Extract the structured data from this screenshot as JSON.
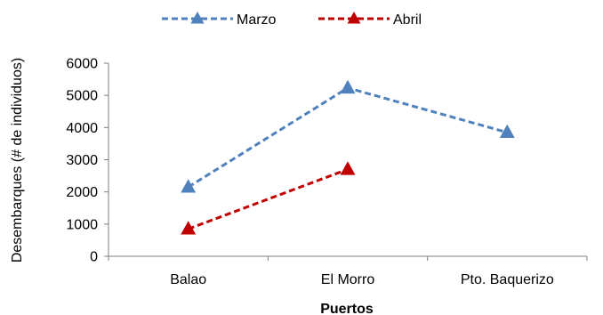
{
  "chart_data": {
    "type": "line",
    "title": "",
    "xlabel": "Puertos",
    "ylabel": "Desembarques (# de individuos)",
    "categories": [
      "Balao",
      "El Morro",
      "Pto. Baquerizo"
    ],
    "ylim": [
      0,
      6000
    ],
    "yticks": [
      0,
      1000,
      2000,
      3000,
      4000,
      5000,
      6000
    ],
    "grid": false,
    "legend": "top-center",
    "series": [
      {
        "name": "Marzo",
        "values": [
          2150,
          5230,
          3850
        ],
        "color": "#4F81BD",
        "line_style": "dashed",
        "marker": "triangle"
      },
      {
        "name": "Abril",
        "values": [
          850,
          2700,
          null
        ],
        "color": "#C00000",
        "line_style": "dashed",
        "marker": "triangle"
      }
    ]
  }
}
